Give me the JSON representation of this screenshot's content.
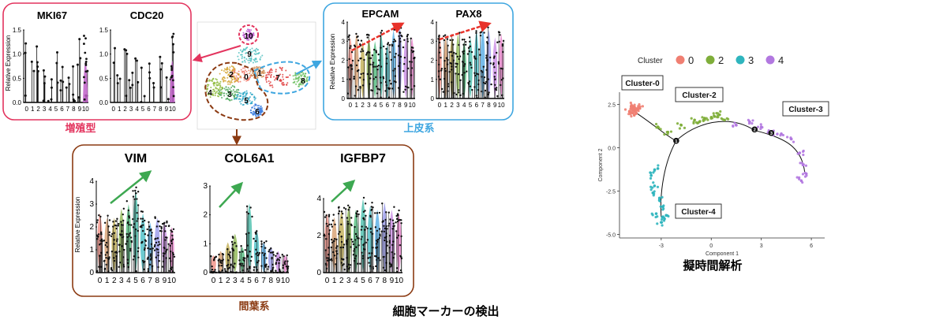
{
  "left_figure": {
    "groups": {
      "proliferative": {
        "label": "増殖型",
        "color": "#e3345e",
        "genes": [
          "MKI67",
          "CDC20"
        ],
        "yticks": [
          "0.0",
          "0.5",
          "1.0",
          "1.5"
        ],
        "ylim": [
          0,
          1.6
        ]
      },
      "epithelial": {
        "label": "上皮系",
        "color": "#3ea6e0",
        "genes": [
          "EPCAM",
          "PAX8"
        ],
        "yticks": [
          "0",
          "1",
          "2",
          "3",
          "4"
        ],
        "ylim": [
          0,
          4
        ]
      },
      "mesenchymal": {
        "label": "間葉系",
        "color": "#8b3a12",
        "genes": [
          "VIM",
          "COL6A1",
          "IGFBP7"
        ],
        "yticks_vim": [
          "0",
          "1",
          "2",
          "3",
          "4"
        ],
        "yticks_col": [
          "0",
          "1",
          "2",
          "3"
        ],
        "yticks_igf": [
          "0",
          "2",
          "4"
        ]
      }
    },
    "ylabel": "Relative Expression",
    "cluster_ticks": [
      "0",
      "1",
      "2",
      "3",
      "4",
      "5",
      "6",
      "7",
      "8",
      "9",
      "10"
    ],
    "umap_cluster_labels": [
      "0",
      "1",
      "2",
      "3",
      "4",
      "5",
      "6",
      "7",
      "8",
      "9",
      "10"
    ],
    "caption": "細胞マーカーの検出"
  },
  "chart_data": {
    "type": "scatter",
    "title": "",
    "xlabel": "Component 1",
    "ylabel": "Component 2",
    "xlim": [
      -5.5,
      6.8
    ],
    "ylim": [
      -5.2,
      3.2
    ],
    "xticks": [
      "-3",
      "0",
      "3",
      "6"
    ],
    "yticks": [
      "2.5",
      "0.0",
      "-2.5",
      "-5.0"
    ],
    "legend_title": "Cluster",
    "legend_position": "top",
    "series": [
      {
        "name": "0",
        "color": "#f07f72",
        "x": [
          -4.9,
          -4.7,
          -4.6,
          -4.5,
          -4.8,
          -4.4,
          -4.6,
          -4.3,
          -4.7,
          -4.5
        ],
        "y": [
          2.1,
          2.3,
          2.2,
          2.0,
          2.4,
          2.2,
          2.1,
          2.3,
          2.0,
          2.25
        ]
      },
      {
        "name": "2",
        "color": "#7fae3a",
        "x": [
          -3.2,
          -2.6,
          -1.8,
          -1.0,
          -0.4,
          0.2,
          0.5,
          0.8,
          -0.7,
          0.0
        ],
        "y": [
          1.2,
          0.9,
          1.3,
          1.6,
          1.7,
          1.8,
          1.9,
          1.6,
          1.5,
          1.75
        ]
      },
      {
        "name": "3",
        "color": "#2fb5be",
        "x": [
          -3.6,
          -3.4,
          -3.1,
          -2.9,
          -3.3,
          -2.8,
          -3.0,
          -3.5,
          -2.7,
          -3.2
        ],
        "y": [
          -1.6,
          -2.2,
          -2.9,
          -3.4,
          -3.8,
          -4.1,
          -4.3,
          -2.6,
          -3.9,
          -1.2
        ]
      },
      {
        "name": "4",
        "color": "#b278e0",
        "x": [
          1.5,
          2.3,
          3.0,
          3.6,
          4.2,
          4.8,
          5.3,
          5.5,
          5.7,
          5.4
        ],
        "y": [
          1.3,
          1.5,
          1.2,
          0.9,
          0.8,
          0.5,
          -0.3,
          -1.0,
          -1.5,
          -1.9
        ]
      }
    ],
    "trajectory_nodes": [
      "1",
      "2",
      "3"
    ],
    "annotations": [
      "Cluster-0",
      "Cluster-2",
      "Cluster-3",
      "Cluster-4"
    ],
    "caption": "擬時間解析"
  }
}
